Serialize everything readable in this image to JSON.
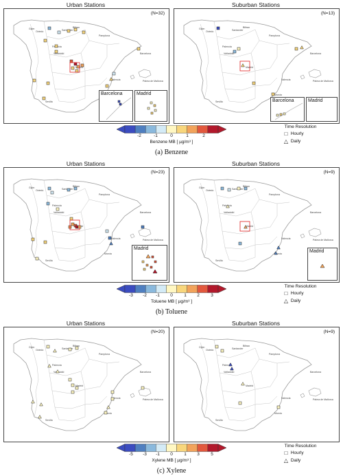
{
  "colors": [
    "#3b4cc0",
    "#4f7fc0",
    "#8ab9dd",
    "#d4ebf6",
    "#fff7c2",
    "#f8d67c",
    "#f2a35b",
    "#e2583d",
    "#b2182b"
  ],
  "panels": [
    {
      "urban_title": "Urban Stations",
      "suburban_title": "Suburban Stations",
      "urban_n": "(N=32)",
      "suburban_n": "(N=13)",
      "urban_insets": [
        "Barcelona",
        "Madrid"
      ],
      "suburban_insets": [
        "Barcelona",
        "Madrid"
      ],
      "cbar_label": "Benzene MB [ µg/m³ ]",
      "ticks": [
        "-2",
        "-1",
        "0",
        "1",
        "2"
      ],
      "caption": "(a) Benzene"
    },
    {
      "urban_title": "Urban Stations",
      "suburban_title": "Suburban Stations",
      "urban_n": "(N=23)",
      "suburban_n": "(N=9)",
      "urban_insets": [
        "Madrid"
      ],
      "suburban_insets": [
        "Madrid"
      ],
      "cbar_label": "Toluene MB [ µg/m³ ]",
      "ticks": [
        "-3",
        "-2",
        "-1",
        "0",
        "1",
        "2",
        "3"
      ],
      "caption": "(b) Toluene"
    },
    {
      "urban_title": "Urban Stations",
      "suburban_title": "Suburban Stations",
      "urban_n": "(N=20)",
      "suburban_n": "(N=9)",
      "urban_insets": [],
      "suburban_insets": [],
      "cbar_label": "Xylene MB [ µg/m³ ]",
      "ticks": [
        "-5",
        "-3",
        "-1",
        "0",
        "1",
        "3",
        "5"
      ],
      "caption": "(c) Xylene"
    }
  ],
  "legend": {
    "title": "Time Resolution",
    "hourly": "Hourly",
    "daily": "Daily"
  },
  "city_names": [
    "Gijón",
    "Bilbao",
    "Oviedo",
    "Santander",
    "Pamplona",
    "Palencia",
    "Valladolid",
    "Madrid",
    "Valencia",
    "Barcelona",
    "Palma de Mallorca",
    "Murcia",
    "Sevilla"
  ]
}
